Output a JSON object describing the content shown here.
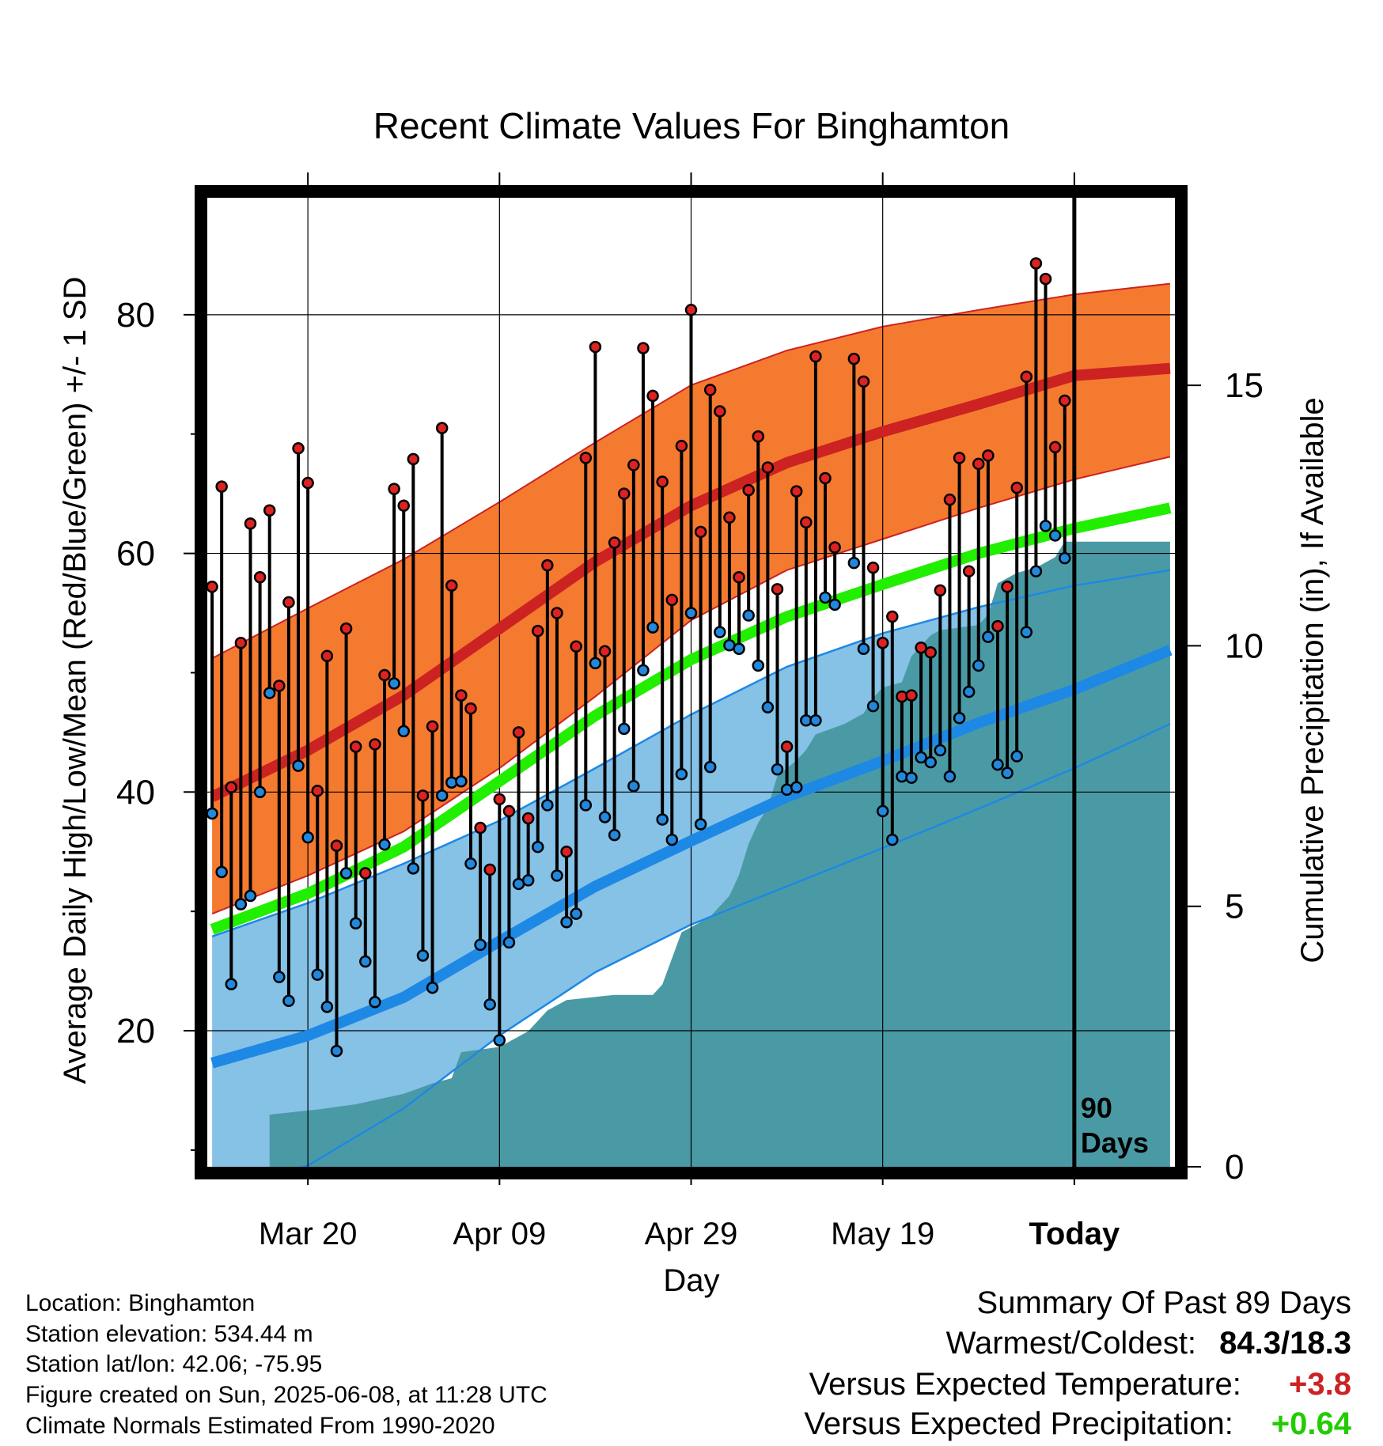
{
  "chart_data": {
    "type": "line",
    "title": "Recent Climate Values For Binghamton",
    "xlabel": "Day",
    "ylabel": "Average Daily High/Low/Mean (Red/Blue/Green) +/- 1 SD",
    "y2label": "Cumulative Precipitation (in), If Available",
    "x_tick_labels": [
      "Mar 20",
      "Apr 09",
      "Apr 29",
      "May 19",
      "Today"
    ],
    "x_tick_days": [
      10,
      30,
      50,
      70,
      90
    ],
    "x_range": [
      -0.5,
      100.5
    ],
    "y_range": [
      8.6,
      89.8
    ],
    "y_ticks": [
      20,
      40,
      60,
      80
    ],
    "y_minor_ticks": [
      10,
      30,
      50,
      70
    ],
    "y2_range": [
      0,
      18.6
    ],
    "y2_ticks": [
      0,
      5,
      10,
      15
    ],
    "today_marker": "90\nDays",
    "daily_high": [
      57.2,
      65.6,
      40.4,
      52.5,
      62.5,
      58.0,
      63.6,
      48.9,
      55.9,
      68.8,
      65.9,
      40.1,
      51.4,
      35.5,
      53.7,
      43.8,
      33.2,
      44.0,
      49.8,
      65.4,
      64.0,
      67.9,
      39.7,
      45.5,
      70.5,
      57.3,
      48.1,
      47.0,
      37.0,
      33.5,
      39.4,
      38.4,
      45.0,
      37.8,
      53.5,
      59.0,
      55.0,
      35.0,
      52.2,
      68.0,
      77.3,
      51.8,
      60.9,
      65.0,
      67.4,
      77.2,
      73.2,
      66.0,
      56.1,
      69.0,
      80.4,
      61.8,
      73.7,
      71.9,
      63.0,
      58.0,
      65.3,
      69.8,
      67.2,
      57.0,
      43.8,
      65.2,
      62.6,
      76.5,
      66.3,
      60.5,
      null,
      76.3,
      74.4,
      58.8,
      52.5,
      54.7,
      48.0,
      48.1,
      52.1,
      51.7,
      56.9,
      64.5,
      68.0,
      58.5,
      67.5,
      68.2,
      53.9,
      57.2,
      65.5,
      74.8,
      84.3,
      83.0,
      68.9,
      72.8
    ],
    "daily_low": [
      38.2,
      33.3,
      23.9,
      30.6,
      31.3,
      40.0,
      48.3,
      24.5,
      22.5,
      42.2,
      36.2,
      24.7,
      22.0,
      18.3,
      33.2,
      29.0,
      25.8,
      22.4,
      35.6,
      49.1,
      45.1,
      33.6,
      26.3,
      23.6,
      39.7,
      40.8,
      40.9,
      34.0,
      27.2,
      22.2,
      19.2,
      27.4,
      32.3,
      32.6,
      35.4,
      38.9,
      33.0,
      29.1,
      29.8,
      38.9,
      50.8,
      37.9,
      36.4,
      45.3,
      40.5,
      50.2,
      53.8,
      37.7,
      36.0,
      41.5,
      55.0,
      37.3,
      42.1,
      53.4,
      52.3,
      52.0,
      54.8,
      50.6,
      47.1,
      41.9,
      40.2,
      40.4,
      46.0,
      46.0,
      56.3,
      55.7,
      null,
      59.2,
      52.0,
      47.2,
      38.4,
      36.0,
      41.3,
      41.2,
      42.9,
      42.5,
      43.5,
      41.3,
      46.2,
      48.4,
      50.6,
      53.0,
      42.3,
      41.6,
      43.0,
      53.4,
      58.5,
      62.3,
      61.5,
      59.6
    ],
    "normal_high": [
      39.6,
      43.5,
      48.1,
      53.7,
      59.3,
      64.0,
      67.6,
      70.2,
      72.5,
      74.9,
      75.5
    ],
    "normal_high_sd_upper": [
      51.2,
      55.4,
      59.5,
      64.3,
      69.3,
      74.1,
      77.0,
      79.0,
      80.4,
      81.7,
      82.6
    ],
    "normal_high_sd_lower": [
      29.8,
      33.0,
      36.7,
      42.0,
      48.0,
      54.4,
      58.6,
      61.2,
      63.8,
      66.2,
      68.1
    ],
    "normal_mean": [
      28.5,
      31.5,
      35.4,
      40.9,
      46.4,
      51.1,
      54.7,
      57.4,
      60.0,
      62.1,
      63.8
    ],
    "normal_low": [
      17.3,
      19.6,
      22.8,
      27.5,
      32.1,
      35.9,
      39.6,
      42.6,
      45.8,
      48.6,
      51.9
    ],
    "normal_low_sd_upper": [
      27.9,
      30.7,
      34.0,
      37.6,
      42.0,
      46.5,
      50.5,
      53.3,
      55.5,
      57.3,
      58.6
    ],
    "normal_low_sd_lower": [
      6.7,
      8.7,
      13.5,
      19.6,
      24.9,
      28.9,
      32.1,
      35.3,
      38.6,
      42.0,
      45.7
    ],
    "normal_days": [
      0,
      10,
      20,
      30,
      40,
      50,
      60,
      70,
      80,
      90,
      100
    ],
    "cumulative_precip_steps": [
      [
        6,
        0
      ],
      [
        6,
        1.0
      ],
      [
        11,
        1.1
      ],
      [
        15,
        1.2
      ],
      [
        20,
        1.4
      ],
      [
        23,
        1.6
      ],
      [
        25,
        1.7
      ],
      [
        26,
        2.2
      ],
      [
        30,
        2.3
      ],
      [
        33,
        2.6
      ],
      [
        35,
        3.0
      ],
      [
        37,
        3.2
      ],
      [
        42,
        3.3
      ],
      [
        46,
        3.3
      ],
      [
        47,
        3.5
      ],
      [
        49,
        4.5
      ],
      [
        52,
        4.8
      ],
      [
        54,
        5.2
      ],
      [
        55,
        5.6
      ],
      [
        56,
        6.2
      ],
      [
        57,
        6.6
      ],
      [
        58,
        6.9
      ],
      [
        59,
        7.5
      ],
      [
        61,
        7.8
      ],
      [
        62,
        8.0
      ],
      [
        63,
        8.3
      ],
      [
        66,
        8.5
      ],
      [
        68,
        8.7
      ],
      [
        69,
        9.0
      ],
      [
        70,
        9.2
      ],
      [
        72,
        9.3
      ],
      [
        73,
        9.8
      ],
      [
        75,
        10.2
      ],
      [
        76,
        10.3
      ],
      [
        80,
        10.4
      ],
      [
        81,
        10.6
      ],
      [
        82,
        11.2
      ],
      [
        84,
        11.4
      ],
      [
        86,
        11.5
      ],
      [
        88,
        11.7
      ],
      [
        89,
        12.0
      ],
      [
        100,
        12.0
      ]
    ],
    "colors": {
      "normal_high": "#cc2222",
      "high_band": "#f47a30",
      "normal_mean": "#22ee00",
      "normal_low": "#1e88e5",
      "low_band": "#86c1e6",
      "precip": "#4a9aa5"
    }
  },
  "footer": {
    "location": "Location: Binghamton",
    "elevation": "Station elevation: 534.44 m",
    "latlon": "Station lat/lon: 42.06; -75.95",
    "created": "Figure created on Sun, 2025-06-08, at 11:28 UTC",
    "normals": "Climate Normals Estimated From 1990-2020"
  },
  "summary": {
    "heading": "Summary Of Past 89 Days",
    "warmest_label": "Warmest/Coldest:",
    "warmest_value": "84.3/18.3",
    "temp_label": "Versus Expected Temperature:",
    "temp_value": "+3.8",
    "temp_color": "#cc2222",
    "precip_label": "Versus Expected Precipitation:",
    "precip_value": "+0.64",
    "precip_color": "#22cc00"
  }
}
